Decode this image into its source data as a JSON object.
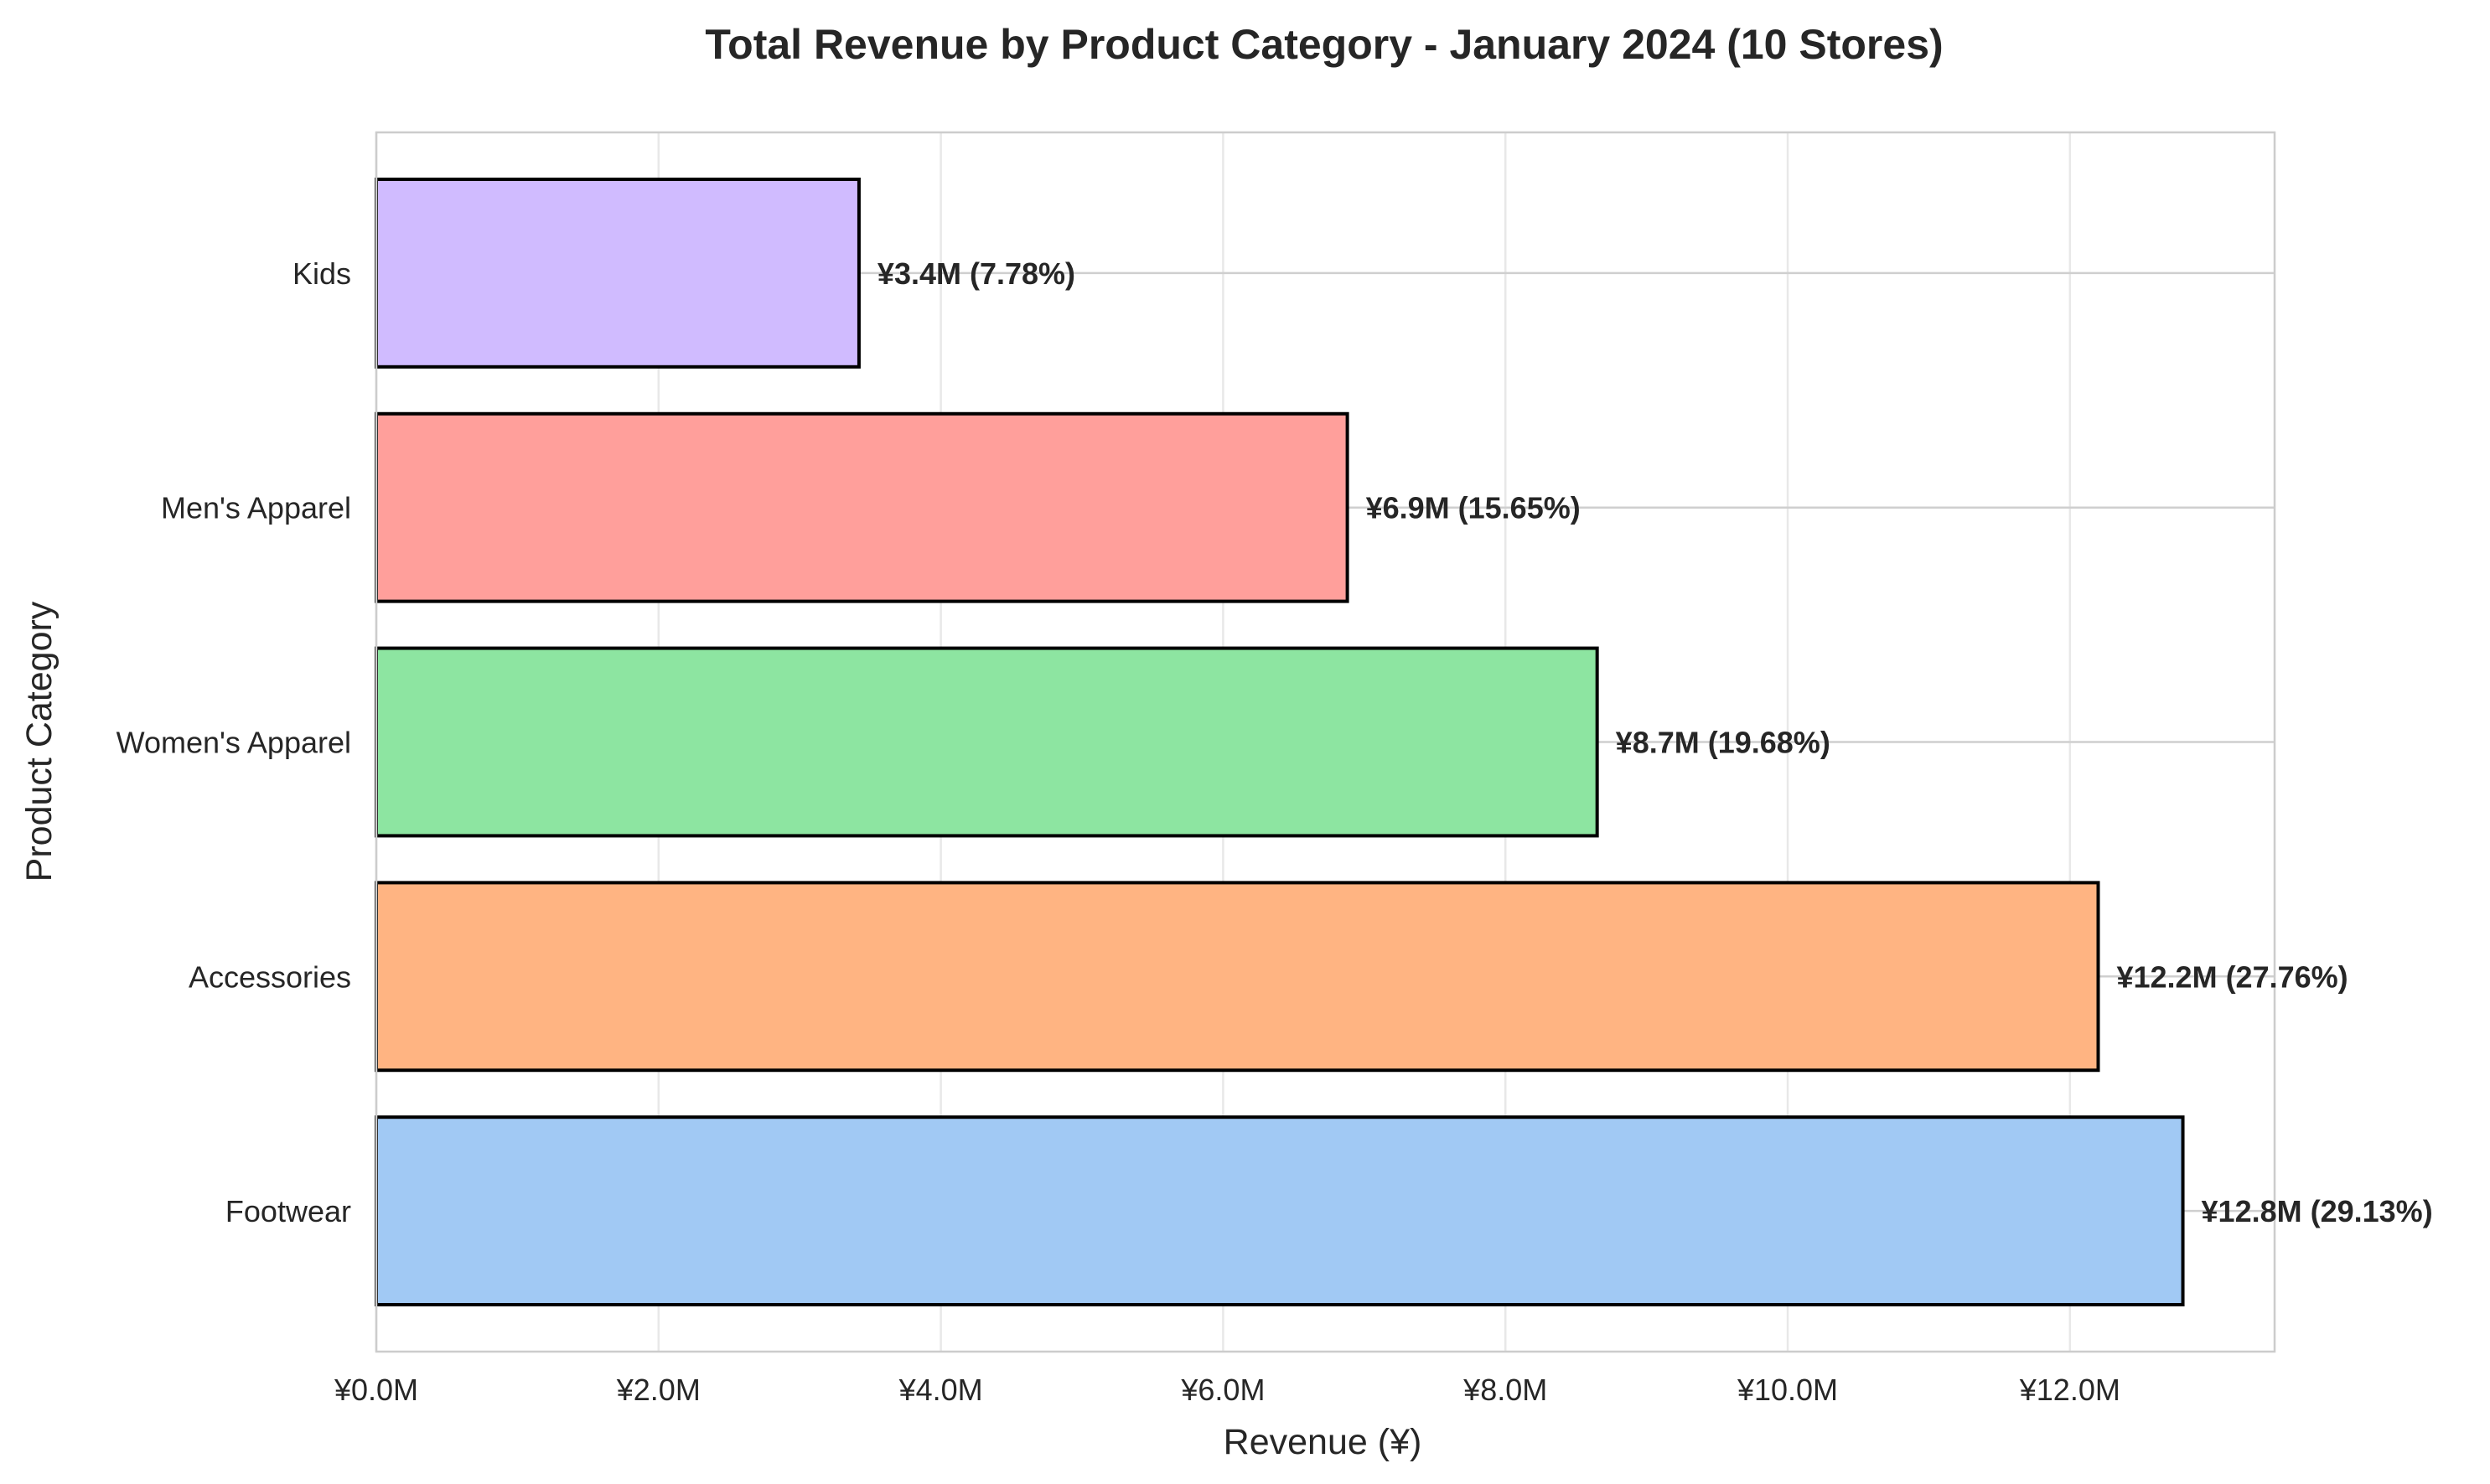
{
  "chart_data": {
    "type": "bar",
    "orientation": "horizontal",
    "title": "Total Revenue by Product Category - January 2024 (10 Stores)",
    "xlabel": "Revenue (¥)",
    "ylabel": "Product Category",
    "xlim": [
      0,
      13.45
    ],
    "x_ticks": [
      0,
      2,
      4,
      6,
      8,
      10,
      12
    ],
    "x_tick_labels": [
      "¥0.0M",
      "¥2.0M",
      "¥4.0M",
      "¥6.0M",
      "¥8.0M",
      "¥10.0M",
      "¥12.0M"
    ],
    "grid": true,
    "categories": [
      "Footwear",
      "Accessories",
      "Women's Apparel",
      "Men's Apparel",
      "Kids"
    ],
    "values": [
      12.8,
      12.2,
      8.65,
      6.88,
      3.42
    ],
    "value_unit": "¥ million",
    "data_labels": [
      "¥12.8M (29.13%)",
      "¥12.2M (27.76%)",
      "¥8.7M (19.68%)",
      "¥6.9M (15.65%)",
      "¥3.4M (7.78%)"
    ],
    "colors": [
      "#a1c9f4",
      "#ffb482",
      "#8de5a1",
      "#ff9f9b",
      "#d0bbff"
    ],
    "edge_color": "#000000"
  }
}
